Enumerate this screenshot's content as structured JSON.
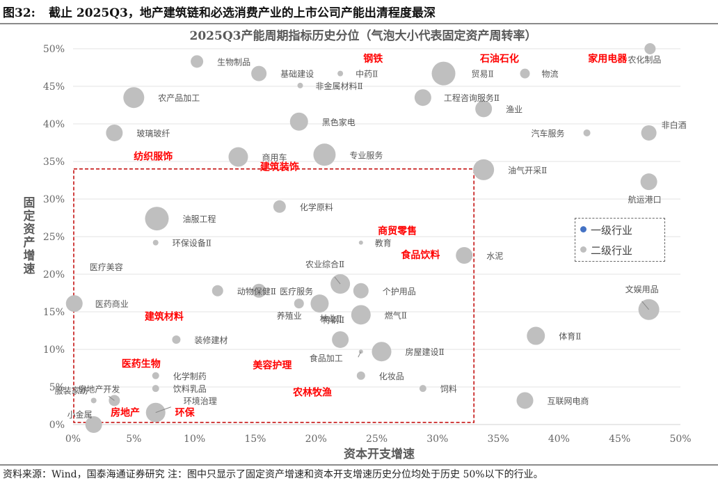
{
  "header": {
    "number": "图32:",
    "caption": "截止 2025Q3，地产建筑链和必选消费产业的上市公司产能出清程度最深"
  },
  "footer": {
    "source": "资料来源：Wind，国泰海通证券研究  注：图中只显示了固定资产增速和资本开支增速历史分位均处于历史 50%以下的行业。"
  },
  "legend": {
    "level1": "一级行业",
    "level2": "二级行业"
  },
  "colors": {
    "level1": "#4472c4",
    "level2": "#bfbfbf",
    "level1_label": "#ff0000",
    "dashed_box": "#c00000"
  },
  "chart_data": {
    "type": "scatter",
    "title": "2025Q3产能周期指标历史分位（气泡大小代表固定资产周转率）",
    "xlabel": "资本开支增速",
    "ylabel": "固定资产增速",
    "xlim": [
      0,
      50
    ],
    "ylim": [
      0,
      50
    ],
    "x_ticks": [
      "0%",
      "5%",
      "10%",
      "15%",
      "20%",
      "25%",
      "30%",
      "35%",
      "40%",
      "45%",
      "50%"
    ],
    "y_ticks": [
      "0%",
      "5%",
      "10%",
      "15%",
      "20%",
      "25%",
      "30%",
      "35%",
      "40%",
      "45%",
      "50%"
    ],
    "grid": "horizontal",
    "legend_position": "right",
    "threshold_box": {
      "x": [
        0,
        33
      ],
      "y": [
        0,
        34
      ]
    },
    "series": [
      {
        "name": "一级行业",
        "points": [
          {
            "label": "钢铁",
            "x": 24.7,
            "y": 48.7
          },
          {
            "label": "石油石化",
            "x": 35.1,
            "y": 48.7
          },
          {
            "label": "家用电器",
            "x": 44.0,
            "y": 48.7
          },
          {
            "label": "纺织服饰",
            "x": 6.6,
            "y": 35.7
          },
          {
            "label": "建筑装饰",
            "x": 17.0,
            "y": 34.3
          },
          {
            "label": "商贸零售",
            "x": 26.7,
            "y": 25.8
          },
          {
            "label": "食品饮料",
            "x": 28.6,
            "y": 22.6
          },
          {
            "label": "建筑材料",
            "x": 7.5,
            "y": 14.4
          },
          {
            "label": "医药生物",
            "x": 5.6,
            "y": 8.1
          },
          {
            "label": "美容护理",
            "x": 16.4,
            "y": 7.9
          },
          {
            "label": "农林牧渔",
            "x": 19.7,
            "y": 4.3
          },
          {
            "label": "房地产",
            "x": 4.3,
            "y": 1.6
          },
          {
            "label": "环保",
            "x": 9.2,
            "y": 1.6
          }
        ]
      },
      {
        "name": "二级行业",
        "points": [
          {
            "label": "生物制品",
            "x": 10.2,
            "y": 48.3,
            "r": 9
          },
          {
            "label": "基础建设",
            "x": 15.3,
            "y": 46.7,
            "r": 11
          },
          {
            "label": "中药Ⅱ",
            "x": 22.0,
            "y": 46.7,
            "r": 4
          },
          {
            "label": "贸易Ⅱ",
            "x": 30.5,
            "y": 46.7,
            "r": 17
          },
          {
            "label": "物流",
            "x": 37.2,
            "y": 46.7,
            "r": 7
          },
          {
            "label": "农化制品",
            "x": 47.5,
            "y": 50.0,
            "r": 8
          },
          {
            "label": "非金属材料Ⅱ",
            "x": 18.7,
            "y": 45.1,
            "r": 4
          },
          {
            "label": "农产品加工",
            "x": 5.0,
            "y": 43.5,
            "r": 15
          },
          {
            "label": "工程咨询服务Ⅱ",
            "x": 28.8,
            "y": 43.5,
            "r": 12
          },
          {
            "label": "渔业",
            "x": 33.8,
            "y": 42.0,
            "r": 12
          },
          {
            "label": "黑色家电",
            "x": 18.6,
            "y": 40.3,
            "r": 13
          },
          {
            "label": "玻璃玻纤",
            "x": 3.4,
            "y": 38.8,
            "r": 12
          },
          {
            "label": "汽车服务",
            "x": 42.3,
            "y": 38.8,
            "r": 5
          },
          {
            "label": "非白酒",
            "x": 47.4,
            "y": 38.8,
            "r": 11
          },
          {
            "label": "商用车",
            "x": 13.6,
            "y": 35.6,
            "r": 14
          },
          {
            "label": "专业服务",
            "x": 20.7,
            "y": 35.9,
            "r": 16
          },
          {
            "label": "油气开采Ⅱ",
            "x": 33.8,
            "y": 33.9,
            "r": 15
          },
          {
            "label": "航运港口",
            "x": 47.4,
            "y": 32.3,
            "r": 12
          },
          {
            "label": "化学原料",
            "x": 17.0,
            "y": 29.0,
            "r": 9
          },
          {
            "label": "油服工程",
            "x": 6.9,
            "y": 27.4,
            "r": 17
          },
          {
            "label": "环保设备Ⅱ",
            "x": 6.8,
            "y": 24.2,
            "r": 4
          },
          {
            "label": "教育",
            "x": 23.7,
            "y": 24.2,
            "r": 3
          },
          {
            "label": "水泥",
            "x": 32.2,
            "y": 22.5,
            "r": 12
          },
          {
            "label": "医疗美容",
            "x": 0.1,
            "y": 21.0,
            "r": 0
          },
          {
            "label": "农业综合Ⅱ",
            "x": 22.0,
            "y": 18.7,
            "r": 14
          },
          {
            "label": "动物保健Ⅱ",
            "x": 11.9,
            "y": 17.8,
            "r": 8
          },
          {
            "label": "医疗服务",
            "x": 15.3,
            "y": 17.8,
            "r": 10
          },
          {
            "label": "个护用品",
            "x": 23.7,
            "y": 17.8,
            "r": 11
          },
          {
            "label": "医药商业",
            "x": 0.1,
            "y": 16.1,
            "r": 12
          },
          {
            "label": "养殖业",
            "x": 18.6,
            "y": 16.1,
            "r": 7
          },
          {
            "label": "林业Ⅱ",
            "x": 20.3,
            "y": 16.1,
            "r": 13
          },
          {
            "label": "燃气Ⅱ",
            "x": 23.7,
            "y": 14.6,
            "r": 14
          },
          {
            "label": "文娱用品",
            "x": 47.4,
            "y": 15.3,
            "r": 15
          },
          {
            "label": "特钢Ⅱ",
            "x": 22.0,
            "y": 11.3,
            "r": 12
          },
          {
            "label": "装修建材",
            "x": 8.5,
            "y": 11.3,
            "r": 6
          },
          {
            "label": "体育Ⅱ",
            "x": 38.1,
            "y": 11.8,
            "r": 13
          },
          {
            "label": "房屋建设Ⅱ",
            "x": 25.4,
            "y": 9.7,
            "r": 14
          },
          {
            "label": "食品加工",
            "x": 23.7,
            "y": 9.7,
            "r": 3
          },
          {
            "label": "化学制药",
            "x": 6.8,
            "y": 6.5,
            "r": 5
          },
          {
            "label": "化妆品",
            "x": 23.7,
            "y": 6.5,
            "r": 6
          },
          {
            "label": "饮料乳品",
            "x": 6.8,
            "y": 4.8,
            "r": 5
          },
          {
            "label": "饲料",
            "x": 28.8,
            "y": 4.8,
            "r": 5
          },
          {
            "label": "服装家纺",
            "x": 1.7,
            "y": 3.2,
            "r": 4
          },
          {
            "label": "房地产开发",
            "x": 3.4,
            "y": 3.2,
            "r": 8
          },
          {
            "label": "环境治理",
            "x": 6.8,
            "y": 1.6,
            "r": 14
          },
          {
            "label": "互联网电商",
            "x": 37.2,
            "y": 3.2,
            "r": 12
          },
          {
            "label": "小金属",
            "x": 1.7,
            "y": 0.0,
            "r": 12
          }
        ]
      }
    ]
  }
}
